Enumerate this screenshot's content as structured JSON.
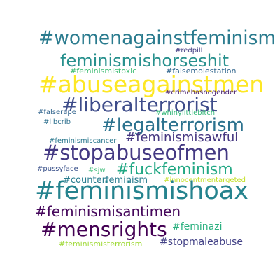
{
  "word_cloud": {
    "words": [
      {
        "text": "#womenagainstfeminism",
        "color": "#2a7b8e"
      },
      {
        "text": "feminismishorseshit",
        "color": "#27908d"
      },
      {
        "text": "#redpill",
        "color": "#433d84"
      },
      {
        "text": "#feminismistoxic",
        "color": "#3ebc73"
      },
      {
        "text": "#falsemolestation",
        "color": "#31668e"
      },
      {
        "text": "#abuseagainstmen",
        "color": "#fde725"
      },
      {
        "text": "#crimehasnogender",
        "color": "#481f70"
      },
      {
        "text": "#liberalterrorist",
        "color": "#3e4c8a"
      },
      {
        "text": "#falserape",
        "color": "#32658e"
      },
      {
        "text": "#whinylittlebitch",
        "color": "#35b779"
      },
      {
        "text": "#libcrib",
        "color": "#2d708e"
      },
      {
        "text": "#legalterrorism",
        "color": "#2c728e"
      },
      {
        "text": "#feminismisawful",
        "color": "#453781"
      },
      {
        "text": "#feminismiscancer",
        "color": "#2a788e"
      },
      {
        "text": "#stopabuseofmen",
        "color": "#443983"
      },
      {
        "text": "#pussyface",
        "color": "#3b528b"
      },
      {
        "text": "#sjw",
        "color": "#3aba76"
      },
      {
        "text": "#fuckfeminism",
        "color": "#22a884"
      },
      {
        "text": "#counterfeminism",
        "color": "#287c8e"
      },
      {
        "text": "#innocentmentargeted",
        "color": "#c2df23"
      },
      {
        "text": "#feminismishoax",
        "color": "#25838e"
      },
      {
        "text": "#feminismisantimen",
        "color": "#46085c"
      },
      {
        "text": "#mensrights",
        "color": "#440154"
      },
      {
        "text": "#feminazi",
        "color": "#2ab07f"
      },
      {
        "text": "#feminismisterrorism",
        "color": "#a0da39"
      },
      {
        "text": "#stopmaleabuse",
        "color": "#424186"
      }
    ]
  }
}
